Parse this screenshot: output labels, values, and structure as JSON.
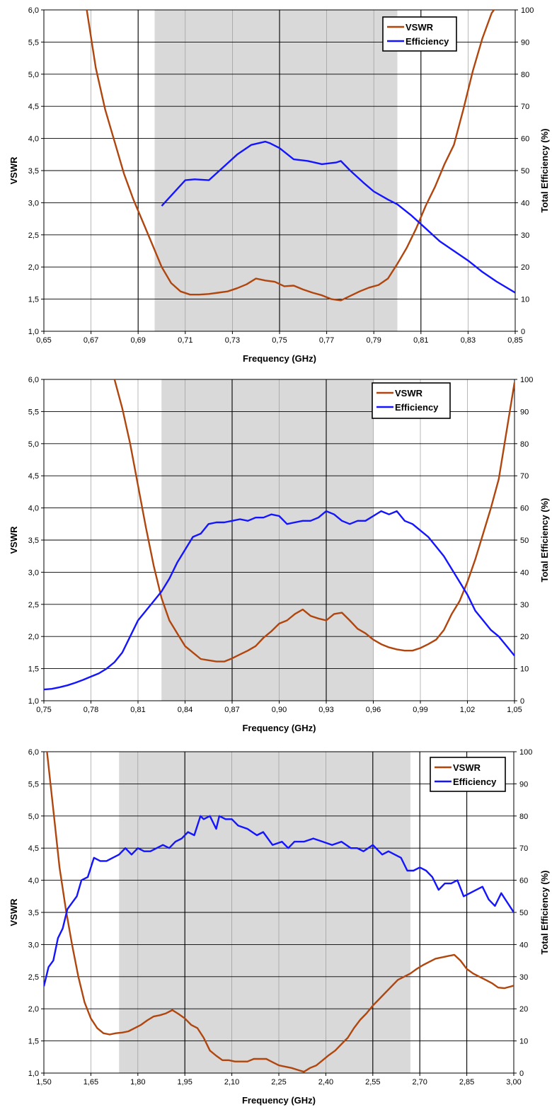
{
  "chart_data": [
    {
      "type": "line",
      "title": "",
      "xlabel": "Frequency (GHz)",
      "ylabel": "VSWR",
      "y2label": "Total Efficiency (%)",
      "xlim": [
        0.65,
        0.85
      ],
      "ylim": [
        1.0,
        6.0
      ],
      "y2lim": [
        0,
        100
      ],
      "xticks": [
        "0,65",
        "0,67",
        "0,69",
        "0,71",
        "0,73",
        "0,75",
        "0,77",
        "0,79",
        "0,81",
        "0,83",
        "0,85"
      ],
      "yticks": [
        "1,0",
        "1,5",
        "2,0",
        "2,5",
        "3,0",
        "3,5",
        "4,0",
        "4,5",
        "5,0",
        "5,5",
        "6,0"
      ],
      "y2ticks": [
        "0",
        "10",
        "20",
        "30",
        "40",
        "50",
        "60",
        "70",
        "80",
        "90",
        "100"
      ],
      "major_gridlines_x": [
        0.69,
        0.75,
        0.81
      ],
      "shaded_band": [
        0.697,
        0.8
      ],
      "grid": true,
      "legend": "top-right",
      "series": [
        {
          "name": "VSWR",
          "axis": "left",
          "color": "#b0460e",
          "x": [
            0.668,
            0.672,
            0.676,
            0.68,
            0.684,
            0.688,
            0.692,
            0.696,
            0.7,
            0.704,
            0.708,
            0.712,
            0.716,
            0.72,
            0.724,
            0.728,
            0.732,
            0.736,
            0.74,
            0.744,
            0.748,
            0.752,
            0.756,
            0.76,
            0.764,
            0.768,
            0.772,
            0.776,
            0.78,
            0.784,
            0.788,
            0.792,
            0.796,
            0.8,
            0.804,
            0.808,
            0.812,
            0.816,
            0.82,
            0.824,
            0.828,
            0.832,
            0.836,
            0.84,
            0.842
          ],
          "y": [
            6.05,
            5.1,
            4.45,
            3.95,
            3.45,
            3.05,
            2.7,
            2.35,
            2.0,
            1.75,
            1.62,
            1.57,
            1.57,
            1.58,
            1.6,
            1.62,
            1.67,
            1.73,
            1.82,
            1.79,
            1.77,
            1.7,
            1.71,
            1.65,
            1.6,
            1.56,
            1.5,
            1.48,
            1.55,
            1.62,
            1.68,
            1.72,
            1.82,
            2.05,
            2.3,
            2.6,
            2.95,
            3.25,
            3.6,
            3.9,
            4.45,
            5.05,
            5.55,
            5.95,
            6.05
          ]
        },
        {
          "name": "Efficiency",
          "axis": "right",
          "color": "#1414ff",
          "x": [
            0.7,
            0.71,
            0.714,
            0.72,
            0.726,
            0.732,
            0.738,
            0.744,
            0.746,
            0.75,
            0.756,
            0.762,
            0.768,
            0.774,
            0.776,
            0.78,
            0.786,
            0.79,
            0.796,
            0.8,
            0.806,
            0.812,
            0.818,
            0.824,
            0.83,
            0.836,
            0.842,
            0.85
          ],
          "y": [
            39,
            47,
            47.3,
            47,
            51,
            55,
            58,
            59,
            58.5,
            57,
            53.5,
            53,
            52,
            52.5,
            53,
            50,
            46,
            43.5,
            41,
            39.5,
            36,
            32,
            28,
            25,
            22,
            18.5,
            15.5,
            12
          ]
        }
      ]
    },
    {
      "type": "line",
      "title": "",
      "xlabel": "Frequency (GHz)",
      "ylabel": "VSWR",
      "y2label": "Total Efficiency (%)",
      "xlim": [
        0.75,
        1.05
      ],
      "ylim": [
        1.0,
        6.0
      ],
      "y2lim": [
        0,
        100
      ],
      "xticks": [
        "0,75",
        "0,78",
        "0,81",
        "0,84",
        "0,87",
        "0,90",
        "0,93",
        "0,96",
        "0,99",
        "1,02",
        "1,05"
      ],
      "yticks": [
        "1,0",
        "1,5",
        "2,0",
        "2,5",
        "3,0",
        "3,5",
        "4,0",
        "4,5",
        "5,0",
        "5,5",
        "6,0"
      ],
      "y2ticks": [
        "0",
        "10",
        "20",
        "30",
        "40",
        "50",
        "60",
        "70",
        "80",
        "90",
        "100"
      ],
      "major_gridlines_x": [
        0.87,
        0.93
      ],
      "shaded_band": [
        0.825,
        0.96
      ],
      "grid": true,
      "legend": "top-right",
      "series": [
        {
          "name": "VSWR",
          "axis": "left",
          "color": "#b0460e",
          "x": [
            0.795,
            0.8,
            0.805,
            0.81,
            0.815,
            0.82,
            0.825,
            0.83,
            0.835,
            0.84,
            0.845,
            0.85,
            0.855,
            0.86,
            0.865,
            0.87,
            0.875,
            0.88,
            0.885,
            0.89,
            0.895,
            0.9,
            0.905,
            0.91,
            0.915,
            0.92,
            0.925,
            0.93,
            0.935,
            0.94,
            0.945,
            0.95,
            0.955,
            0.96,
            0.965,
            0.97,
            0.975,
            0.98,
            0.985,
            0.99,
            0.995,
            1.0,
            1.005,
            1.01,
            1.015,
            1.02,
            1.025,
            1.03,
            1.035,
            1.04,
            1.045,
            1.05
          ],
          "y": [
            6.0,
            5.55,
            5.0,
            4.35,
            3.7,
            3.1,
            2.6,
            2.25,
            2.05,
            1.85,
            1.75,
            1.65,
            1.63,
            1.61,
            1.61,
            1.66,
            1.72,
            1.78,
            1.85,
            1.98,
            2.08,
            2.2,
            2.25,
            2.35,
            2.42,
            2.32,
            2.28,
            2.25,
            2.35,
            2.37,
            2.25,
            2.12,
            2.05,
            1.95,
            1.88,
            1.83,
            1.8,
            1.78,
            1.78,
            1.82,
            1.88,
            1.95,
            2.1,
            2.35,
            2.55,
            2.85,
            3.2,
            3.6,
            4.0,
            4.45,
            5.2,
            5.95
          ]
        },
        {
          "name": "Efficiency",
          "axis": "right",
          "color": "#1414ff",
          "x": [
            0.75,
            0.755,
            0.76,
            0.765,
            0.77,
            0.775,
            0.78,
            0.785,
            0.79,
            0.795,
            0.8,
            0.805,
            0.81,
            0.815,
            0.82,
            0.825,
            0.83,
            0.835,
            0.84,
            0.845,
            0.85,
            0.855,
            0.86,
            0.865,
            0.87,
            0.875,
            0.88,
            0.885,
            0.89,
            0.895,
            0.9,
            0.905,
            0.91,
            0.915,
            0.92,
            0.925,
            0.93,
            0.935,
            0.94,
            0.945,
            0.95,
            0.955,
            0.96,
            0.965,
            0.97,
            0.975,
            0.98,
            0.985,
            0.99,
            0.995,
            1.0,
            1.005,
            1.01,
            1.015,
            1.02,
            1.025,
            1.03,
            1.035,
            1.04,
            1.045,
            1.05
          ],
          "y": [
            3.5,
            3.7,
            4.2,
            4.8,
            5.6,
            6.5,
            7.5,
            8.5,
            10,
            12,
            15,
            20,
            25,
            28,
            31,
            34,
            38,
            43,
            47,
            51,
            52,
            55,
            55.5,
            55.5,
            56,
            56.5,
            56,
            57,
            57,
            58,
            57.5,
            55,
            55.5,
            56,
            56,
            57,
            59,
            58,
            56,
            55,
            56,
            56,
            57.5,
            59,
            58,
            59,
            56,
            55,
            53,
            51,
            48,
            45,
            41,
            37,
            33,
            28,
            25,
            22,
            20,
            17,
            14
          ]
        }
      ]
    },
    {
      "type": "line",
      "title": "",
      "xlabel": "Frequency (GHz)",
      "ylabel": "VSWR",
      "y2label": "Total Efficiency (%)",
      "xlim": [
        1.5,
        3.0
      ],
      "ylim": [
        1.0,
        6.0
      ],
      "y2lim": [
        0,
        100
      ],
      "xticks": [
        "1,50",
        "1,65",
        "1,80",
        "1,95",
        "2,10",
        "2,25",
        "2,40",
        "2,55",
        "2,70",
        "2,85",
        "3,00"
      ],
      "yticks": [
        "1,0",
        "1,5",
        "2,0",
        "2,5",
        "3,0",
        "3,5",
        "4,0",
        "4,5",
        "5,0",
        "5,5",
        "6,0"
      ],
      "y2ticks": [
        "0",
        "10",
        "20",
        "30",
        "40",
        "50",
        "60",
        "70",
        "80",
        "90",
        "100"
      ],
      "major_gridlines_x": [
        1.95,
        2.55,
        2.7,
        2.85
      ],
      "shaded_band": [
        1.74,
        2.67
      ],
      "grid": true,
      "legend": "top-right",
      "series": [
        {
          "name": "VSWR",
          "axis": "left",
          "color": "#b0460e",
          "x": [
            1.51,
            1.53,
            1.55,
            1.57,
            1.59,
            1.61,
            1.63,
            1.65,
            1.67,
            1.69,
            1.71,
            1.73,
            1.75,
            1.77,
            1.79,
            1.81,
            1.83,
            1.85,
            1.87,
            1.89,
            1.91,
            1.93,
            1.95,
            1.97,
            1.99,
            2.01,
            2.03,
            2.05,
            2.07,
            2.09,
            2.11,
            2.13,
            2.15,
            2.17,
            2.19,
            2.21,
            2.23,
            2.25,
            2.27,
            2.29,
            2.31,
            2.33,
            2.35,
            2.37,
            2.39,
            2.41,
            2.43,
            2.45,
            2.47,
            2.49,
            2.51,
            2.53,
            2.55,
            2.57,
            2.59,
            2.61,
            2.63,
            2.65,
            2.67,
            2.69,
            2.71,
            2.73,
            2.75,
            2.77,
            2.79,
            2.81,
            2.83,
            2.85,
            2.87,
            2.89,
            2.91,
            2.93,
            2.95,
            2.97,
            3.0
          ],
          "y": [
            6.0,
            5.1,
            4.2,
            3.55,
            3.0,
            2.5,
            2.1,
            1.85,
            1.7,
            1.62,
            1.6,
            1.62,
            1.63,
            1.65,
            1.7,
            1.75,
            1.82,
            1.88,
            1.9,
            1.93,
            1.98,
            1.92,
            1.85,
            1.75,
            1.7,
            1.55,
            1.35,
            1.27,
            1.2,
            1.2,
            1.18,
            1.18,
            1.18,
            1.22,
            1.22,
            1.22,
            1.17,
            1.12,
            1.1,
            1.08,
            1.05,
            1.02,
            1.08,
            1.12,
            1.2,
            1.28,
            1.35,
            1.45,
            1.55,
            1.7,
            1.83,
            1.93,
            2.05,
            2.15,
            2.25,
            2.35,
            2.45,
            2.5,
            2.55,
            2.62,
            2.68,
            2.73,
            2.78,
            2.8,
            2.82,
            2.84,
            2.75,
            2.62,
            2.55,
            2.5,
            2.45,
            2.4,
            2.33,
            2.32,
            2.36
          ]
        },
        {
          "name": "Efficiency",
          "axis": "right",
          "color": "#1414ff",
          "x": [
            1.5,
            1.515,
            1.53,
            1.545,
            1.56,
            1.575,
            1.59,
            1.605,
            1.62,
            1.64,
            1.66,
            1.68,
            1.7,
            1.72,
            1.74,
            1.76,
            1.78,
            1.8,
            1.82,
            1.84,
            1.86,
            1.88,
            1.9,
            1.92,
            1.94,
            1.96,
            1.98,
            2.0,
            2.01,
            2.03,
            2.05,
            2.06,
            2.08,
            2.1,
            2.12,
            2.15,
            2.18,
            2.2,
            2.23,
            2.26,
            2.28,
            2.3,
            2.33,
            2.36,
            2.39,
            2.42,
            2.45,
            2.48,
            2.5,
            2.52,
            2.55,
            2.58,
            2.6,
            2.62,
            2.64,
            2.66,
            2.68,
            2.7,
            2.72,
            2.74,
            2.76,
            2.78,
            2.8,
            2.82,
            2.84,
            2.86,
            2.88,
            2.9,
            2.92,
            2.94,
            2.96,
            2.98,
            3.0
          ],
          "y": [
            27,
            33,
            35,
            42,
            45,
            51,
            53,
            55,
            60,
            61,
            67,
            66,
            66,
            67,
            68,
            70,
            68,
            70,
            69,
            69,
            70,
            71,
            70,
            72,
            73,
            75,
            74,
            80,
            79,
            80,
            76,
            80,
            79,
            79,
            77,
            76,
            74,
            75,
            71,
            72,
            70,
            72,
            72,
            73,
            72,
            71,
            72,
            70,
            70,
            69,
            71,
            68,
            69,
            68,
            67,
            63,
            63,
            64,
            63,
            61,
            57,
            59,
            59,
            60,
            55,
            56,
            57,
            58,
            54,
            52,
            56,
            53,
            50
          ]
        }
      ]
    }
  ]
}
